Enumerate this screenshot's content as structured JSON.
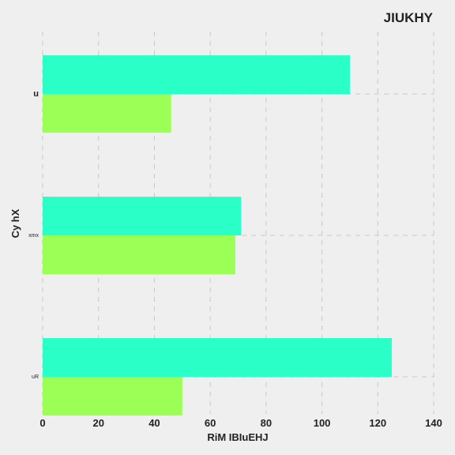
{
  "chart_data": {
    "type": "bar",
    "orientation": "horizontal",
    "title": "JIUKHY",
    "xlabel": "RiM IBIuEHJ",
    "ylabel": "Cy hX",
    "categories": [
      "u",
      "xmx",
      "uR"
    ],
    "series": [
      {
        "color": "#2bffc8",
        "values": [
          110,
          71,
          125
        ]
      },
      {
        "color": "#9cff55",
        "values": [
          46,
          69,
          50
        ]
      }
    ],
    "xlim": [
      0,
      140
    ],
    "xticks": [
      0,
      20,
      40,
      60,
      80,
      100,
      120,
      140
    ],
    "grid": true,
    "legend": "none"
  }
}
